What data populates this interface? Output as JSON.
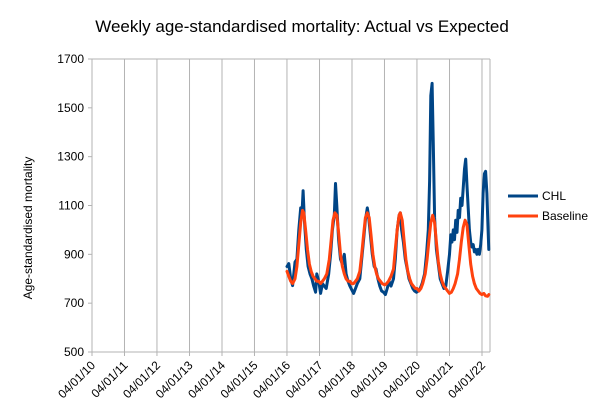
{
  "chart_data": {
    "type": "line",
    "title": "Weekly age-standardised mortality: Actual vs Expected",
    "xlabel": "",
    "ylabel": "Age-standardised mortality",
    "ylim": [
      500,
      1700
    ],
    "yticks": [
      500,
      700,
      900,
      1100,
      1300,
      1500,
      1700
    ],
    "xlim": [
      "2010-01-04",
      "2022-04-04"
    ],
    "xticks": [
      "04/01/10",
      "04/01/11",
      "04/01/12",
      "04/01/13",
      "04/01/14",
      "04/01/15",
      "04/01/16",
      "04/01/17",
      "04/01/18",
      "04/01/19",
      "04/01/20",
      "04/01/21",
      "04/01/22"
    ],
    "grid": "vertical",
    "legend_position": "right",
    "series": [
      {
        "name": "CHL",
        "color": "#004586",
        "points": [
          [
            "2016-01-04",
            850
          ],
          [
            "2016-01-25",
            862
          ],
          [
            "2016-02-15",
            800
          ],
          [
            "2016-03-07",
            772
          ],
          [
            "2016-04-04",
            868
          ],
          [
            "2016-04-25",
            880
          ],
          [
            "2016-05-16",
            1000
          ],
          [
            "2016-06-06",
            1090
          ],
          [
            "2016-06-20",
            1060
          ],
          [
            "2016-07-04",
            1160
          ],
          [
            "2016-07-18",
            1040
          ],
          [
            "2016-08-08",
            920
          ],
          [
            "2016-08-29",
            850
          ],
          [
            "2016-09-19",
            820
          ],
          [
            "2016-10-10",
            800
          ],
          [
            "2016-10-31",
            770
          ],
          [
            "2016-11-21",
            745
          ],
          [
            "2016-12-05",
            820
          ],
          [
            "2016-12-26",
            790
          ],
          [
            "2017-01-16",
            740
          ],
          [
            "2017-02-06",
            780
          ],
          [
            "2017-02-27",
            770
          ],
          [
            "2017-03-20",
            760
          ],
          [
            "2017-04-17",
            820
          ],
          [
            "2017-05-08",
            900
          ],
          [
            "2017-05-29",
            1000
          ],
          [
            "2017-06-19",
            1060
          ],
          [
            "2017-07-03",
            1190
          ],
          [
            "2017-07-17",
            1100
          ],
          [
            "2017-08-07",
            960
          ],
          [
            "2017-08-28",
            880
          ],
          [
            "2017-09-18",
            860
          ],
          [
            "2017-10-09",
            900
          ],
          [
            "2017-10-30",
            820
          ],
          [
            "2017-11-20",
            790
          ],
          [
            "2017-12-11",
            770
          ],
          [
            "2018-01-01",
            755
          ],
          [
            "2018-01-22",
            740
          ],
          [
            "2018-02-12",
            760
          ],
          [
            "2018-03-05",
            780
          ],
          [
            "2018-04-02",
            800
          ],
          [
            "2018-04-23",
            880
          ],
          [
            "2018-05-14",
            960
          ],
          [
            "2018-06-04",
            1040
          ],
          [
            "2018-06-25",
            1090
          ],
          [
            "2018-07-09",
            1060
          ],
          [
            "2018-07-30",
            980
          ],
          [
            "2018-08-20",
            900
          ],
          [
            "2018-09-10",
            850
          ],
          [
            "2018-10-01",
            840
          ],
          [
            "2018-10-22",
            800
          ],
          [
            "2018-11-12",
            770
          ],
          [
            "2018-12-03",
            750
          ],
          [
            "2018-12-24",
            745
          ],
          [
            "2019-01-14",
            735
          ],
          [
            "2019-02-04",
            760
          ],
          [
            "2019-02-25",
            790
          ],
          [
            "2019-03-18",
            770
          ],
          [
            "2019-04-15",
            800
          ],
          [
            "2019-05-06",
            880
          ],
          [
            "2019-05-27",
            1000
          ],
          [
            "2019-06-17",
            1060
          ],
          [
            "2019-07-01",
            1070
          ],
          [
            "2019-07-15",
            1000
          ],
          [
            "2019-08-05",
            950
          ],
          [
            "2019-08-26",
            880
          ],
          [
            "2019-09-16",
            840
          ],
          [
            "2019-10-07",
            800
          ],
          [
            "2019-10-28",
            780
          ],
          [
            "2019-11-18",
            760
          ],
          [
            "2019-12-09",
            750
          ],
          [
            "2019-12-30",
            745
          ],
          [
            "2020-01-20",
            750
          ],
          [
            "2020-02-10",
            760
          ],
          [
            "2020-03-02",
            780
          ],
          [
            "2020-03-30",
            820
          ],
          [
            "2020-04-20",
            900
          ],
          [
            "2020-05-11",
            1000
          ],
          [
            "2020-05-25",
            1200
          ],
          [
            "2020-06-08",
            1550
          ],
          [
            "2020-06-22",
            1600
          ],
          [
            "2020-07-06",
            1350
          ],
          [
            "2020-07-20",
            1050
          ],
          [
            "2020-08-10",
            920
          ],
          [
            "2020-08-31",
            860
          ],
          [
            "2020-09-21",
            800
          ],
          [
            "2020-10-12",
            780
          ],
          [
            "2020-11-02",
            760
          ],
          [
            "2020-11-23",
            770
          ],
          [
            "2020-12-14",
            830
          ],
          [
            "2021-01-04",
            900
          ],
          [
            "2021-01-18",
            980
          ],
          [
            "2021-02-01",
            950
          ],
          [
            "2021-02-15",
            1000
          ],
          [
            "2021-03-01",
            960
          ],
          [
            "2021-03-15",
            1040
          ],
          [
            "2021-03-29",
            990
          ],
          [
            "2021-04-12",
            1080
          ],
          [
            "2021-04-26",
            1050
          ],
          [
            "2021-05-10",
            1130
          ],
          [
            "2021-05-24",
            1100
          ],
          [
            "2021-06-07",
            1170
          ],
          [
            "2021-06-21",
            1250
          ],
          [
            "2021-07-05",
            1290
          ],
          [
            "2021-07-19",
            1180
          ],
          [
            "2021-08-02",
            1090
          ],
          [
            "2021-08-16",
            1000
          ],
          [
            "2021-08-30",
            950
          ],
          [
            "2021-09-13",
            930
          ],
          [
            "2021-09-27",
            940
          ],
          [
            "2021-10-11",
            910
          ],
          [
            "2021-10-25",
            920
          ],
          [
            "2021-11-08",
            900
          ],
          [
            "2021-11-22",
            920
          ],
          [
            "2021-12-06",
            900
          ],
          [
            "2021-12-20",
            940
          ],
          [
            "2022-01-03",
            1000
          ],
          [
            "2022-01-17",
            1150
          ],
          [
            "2022-01-31",
            1230
          ],
          [
            "2022-02-14",
            1240
          ],
          [
            "2022-02-28",
            1150
          ],
          [
            "2022-03-14",
            1000
          ],
          [
            "2022-03-21",
            920
          ]
        ]
      },
      {
        "name": "Baseline",
        "color": "#ff420e",
        "points": [
          [
            "2016-01-04",
            830
          ],
          [
            "2016-01-25",
            810
          ],
          [
            "2016-02-15",
            790
          ],
          [
            "2016-03-07",
            780
          ],
          [
            "2016-04-04",
            800
          ],
          [
            "2016-04-25",
            850
          ],
          [
            "2016-05-16",
            940
          ],
          [
            "2016-06-06",
            1030
          ],
          [
            "2016-06-27",
            1080
          ],
          [
            "2016-07-11",
            1070
          ],
          [
            "2016-08-01",
            1000
          ],
          [
            "2016-08-22",
            920
          ],
          [
            "2016-09-12",
            860
          ],
          [
            "2016-10-03",
            830
          ],
          [
            "2016-10-24",
            810
          ],
          [
            "2016-11-14",
            800
          ],
          [
            "2016-12-05",
            790
          ],
          [
            "2016-12-26",
            790
          ],
          [
            "2017-01-16",
            780
          ],
          [
            "2017-02-06",
            790
          ],
          [
            "2017-02-27",
            800
          ],
          [
            "2017-03-27",
            820
          ],
          [
            "2017-04-24",
            880
          ],
          [
            "2017-05-15",
            960
          ],
          [
            "2017-06-05",
            1040
          ],
          [
            "2017-06-26",
            1070
          ],
          [
            "2017-07-17",
            1060
          ],
          [
            "2017-08-07",
            990
          ],
          [
            "2017-08-28",
            900
          ],
          [
            "2017-09-18",
            850
          ],
          [
            "2017-10-09",
            820
          ],
          [
            "2017-10-30",
            800
          ],
          [
            "2017-11-20",
            790
          ],
          [
            "2017-12-11",
            790
          ],
          [
            "2018-01-01",
            780
          ],
          [
            "2018-01-22",
            780
          ],
          [
            "2018-02-12",
            790
          ],
          [
            "2018-03-05",
            800
          ],
          [
            "2018-04-02",
            830
          ],
          [
            "2018-04-23",
            900
          ],
          [
            "2018-05-14",
            980
          ],
          [
            "2018-06-04",
            1050
          ],
          [
            "2018-06-25",
            1070
          ],
          [
            "2018-07-16",
            1050
          ],
          [
            "2018-08-06",
            980
          ],
          [
            "2018-08-27",
            900
          ],
          [
            "2018-09-17",
            850
          ],
          [
            "2018-10-08",
            820
          ],
          [
            "2018-10-29",
            800
          ],
          [
            "2018-11-19",
            790
          ],
          [
            "2018-12-10",
            780
          ],
          [
            "2019-01-07",
            775
          ],
          [
            "2019-01-28",
            780
          ],
          [
            "2019-02-18",
            790
          ],
          [
            "2019-03-18",
            810
          ],
          [
            "2019-04-15",
            840
          ],
          [
            "2019-05-06",
            920
          ],
          [
            "2019-05-27",
            1000
          ],
          [
            "2019-06-17",
            1060
          ],
          [
            "2019-07-01",
            1070
          ],
          [
            "2019-07-22",
            1040
          ],
          [
            "2019-08-12",
            960
          ],
          [
            "2019-09-02",
            880
          ],
          [
            "2019-09-23",
            830
          ],
          [
            "2019-10-14",
            800
          ],
          [
            "2019-11-04",
            780
          ],
          [
            "2019-11-25",
            770
          ],
          [
            "2019-12-16",
            760
          ],
          [
            "2020-01-06",
            760
          ],
          [
            "2020-01-27",
            750
          ],
          [
            "2020-02-17",
            760
          ],
          [
            "2020-03-09",
            780
          ],
          [
            "2020-04-06",
            820
          ],
          [
            "2020-04-27",
            880
          ],
          [
            "2020-05-18",
            960
          ],
          [
            "2020-06-08",
            1030
          ],
          [
            "2020-06-29",
            1060
          ],
          [
            "2020-07-20",
            1030
          ],
          [
            "2020-08-10",
            950
          ],
          [
            "2020-08-31",
            870
          ],
          [
            "2020-09-21",
            820
          ],
          [
            "2020-10-12",
            790
          ],
          [
            "2020-11-02",
            770
          ],
          [
            "2020-11-23",
            760
          ],
          [
            "2020-12-14",
            750
          ],
          [
            "2021-01-04",
            740
          ],
          [
            "2021-01-25",
            745
          ],
          [
            "2021-02-15",
            760
          ],
          [
            "2021-03-08",
            780
          ],
          [
            "2021-04-05",
            820
          ],
          [
            "2021-04-26",
            880
          ],
          [
            "2021-05-17",
            950
          ],
          [
            "2021-06-07",
            1010
          ],
          [
            "2021-06-28",
            1040
          ],
          [
            "2021-07-19",
            1020
          ],
          [
            "2021-08-09",
            940
          ],
          [
            "2021-08-30",
            860
          ],
          [
            "2021-09-20",
            810
          ],
          [
            "2021-10-11",
            780
          ],
          [
            "2021-11-01",
            760
          ],
          [
            "2021-11-22",
            750
          ],
          [
            "2021-12-13",
            740
          ],
          [
            "2022-01-03",
            735
          ],
          [
            "2022-01-24",
            740
          ],
          [
            "2022-02-14",
            730
          ],
          [
            "2022-03-07",
            728
          ],
          [
            "2022-03-21",
            735
          ]
        ]
      }
    ]
  }
}
